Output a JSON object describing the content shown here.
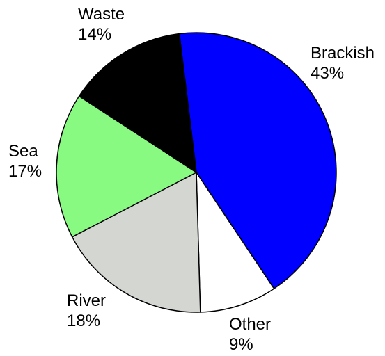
{
  "chart_data": {
    "type": "pie",
    "slices": [
      {
        "name": "Brackish",
        "value": 43,
        "pct_label": "43%",
        "color": "#0000ff"
      },
      {
        "name": "Other",
        "value": 9,
        "pct_label": "9%",
        "color": "#ffffff"
      },
      {
        "name": "River",
        "value": 18,
        "pct_label": "18%",
        "color": "#d4d6d2"
      },
      {
        "name": "Sea",
        "value": 17,
        "pct_label": "17%",
        "color": "#88fa82"
      },
      {
        "name": "Waste",
        "value": 14,
        "pct_label": "14%",
        "color": "#000000"
      }
    ],
    "start_angle_deg": -7,
    "direction": "clockwise",
    "legend": "none"
  }
}
